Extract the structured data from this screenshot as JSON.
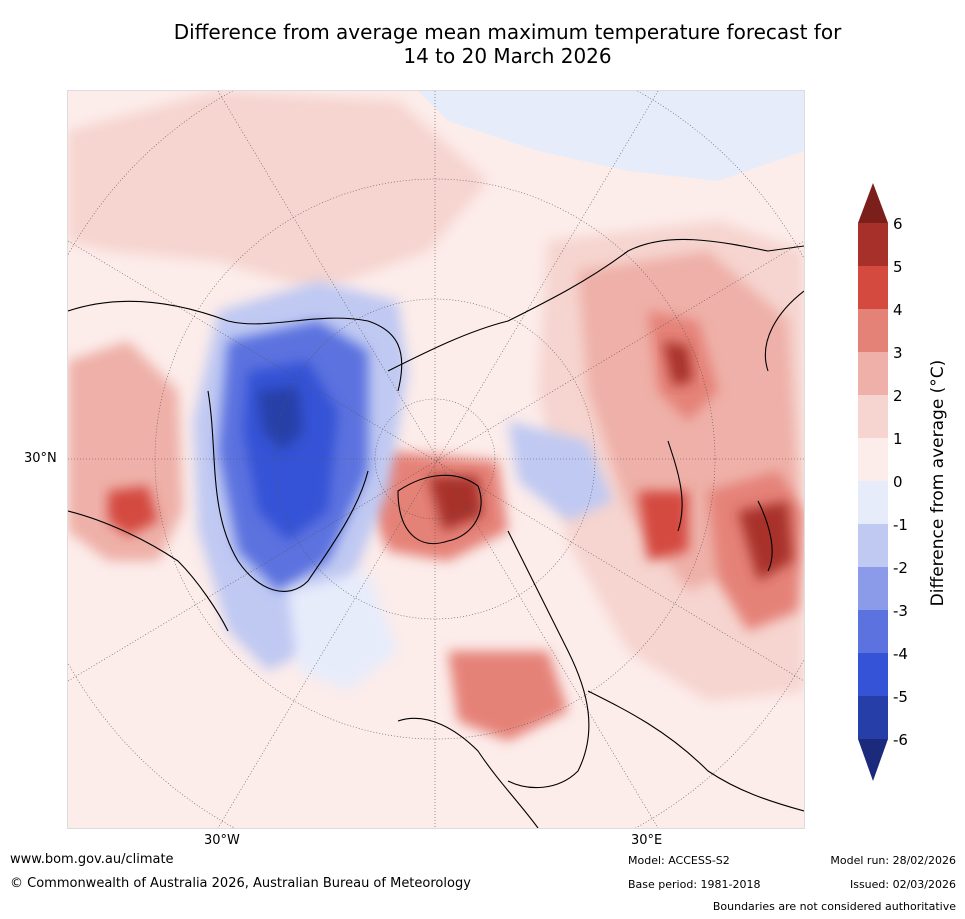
{
  "title_line1": "Difference from average mean maximum temperature forecast for",
  "title_line2": "14 to 20 March 2026",
  "map": {
    "lat_label": "30°N",
    "lon_label_left": "30°W",
    "lon_label_right": "30°E"
  },
  "colorbar": {
    "title": "Difference from average (°C)",
    "ticks": [
      "6",
      "5",
      "4",
      "3",
      "2",
      "1",
      "0",
      "-1",
      "-2",
      "-3",
      "-4",
      "-5",
      "-6"
    ],
    "colors": {
      "gt6": "#7a1f1a",
      "5_6": "#a8302a",
      "4_5": "#d44a3f",
      "3_4": "#e58278",
      "2_3": "#eeb0a8",
      "1_2": "#f6d4cf",
      "0_1": "#fcecea",
      "m1_0": "#e7ecfb",
      "m2_m1": "#c0c9f2",
      "m3_m2": "#8c9be9",
      "m4_m3": "#5c72df",
      "m5_m4": "#3553d6",
      "m6_m5": "#263fa8",
      "lt_m6": "#1b2a7a"
    }
  },
  "footer": {
    "url": "www.bom.gov.au/climate",
    "copyright": "© Commonwealth of Australia 2026, Australian Bureau of Meteorology",
    "model": "Model: ACCESS-S2",
    "base_period": "Base period: 1981-2018",
    "model_run": "Model run: 28/02/2026",
    "issued": "Issued: 02/03/2026",
    "disclaimer": "Boundaries are not considered authoritative"
  }
}
